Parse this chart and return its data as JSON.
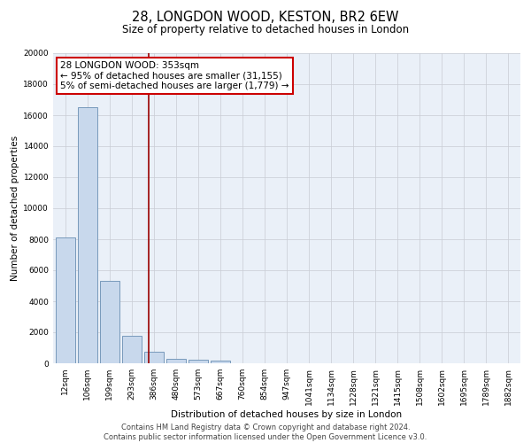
{
  "title": "28, LONGDON WOOD, KESTON, BR2 6EW",
  "subtitle": "Size of property relative to detached houses in London",
  "xlabel": "Distribution of detached houses by size in London",
  "ylabel": "Number of detached properties",
  "bin_labels": [
    "12sqm",
    "106sqm",
    "199sqm",
    "293sqm",
    "386sqm",
    "480sqm",
    "573sqm",
    "667sqm",
    "760sqm",
    "854sqm",
    "947sqm",
    "1041sqm",
    "1134sqm",
    "1228sqm",
    "1321sqm",
    "1415sqm",
    "1508sqm",
    "1602sqm",
    "1695sqm",
    "1789sqm",
    "1882sqm"
  ],
  "bar_heights": [
    8100,
    16500,
    5300,
    1800,
    750,
    300,
    230,
    150,
    0,
    0,
    0,
    0,
    0,
    0,
    0,
    0,
    0,
    0,
    0,
    0,
    0
  ],
  "bar_color": "#c8d8ec",
  "bar_edge_color": "#7799bb",
  "ylim": [
    0,
    20000
  ],
  "yticks": [
    0,
    2000,
    4000,
    6000,
    8000,
    10000,
    12000,
    14000,
    16000,
    18000,
    20000
  ],
  "property_line_x": 3.75,
  "annotation_line1": "28 LONGDON WOOD: 353sqm",
  "annotation_line2": "← 95% of detached houses are smaller (31,155)",
  "annotation_line3": "5% of semi-detached houses are larger (1,779) →",
  "annotation_box_color": "#ffffff",
  "annotation_box_edge_color": "#cc0000",
  "property_line_color": "#990000",
  "footer_line1": "Contains HM Land Registry data © Crown copyright and database right 2024.",
  "footer_line2": "Contains public sector information licensed under the Open Government Licence v3.0.",
  "background_color": "#eaf0f8",
  "grid_color": "#c8ccd4",
  "title_fontsize": 10.5,
  "subtitle_fontsize": 8.5,
  "axis_label_fontsize": 7.5,
  "tick_fontsize": 6.5,
  "annotation_fontsize": 7.5,
  "footer_fontsize": 6.0
}
